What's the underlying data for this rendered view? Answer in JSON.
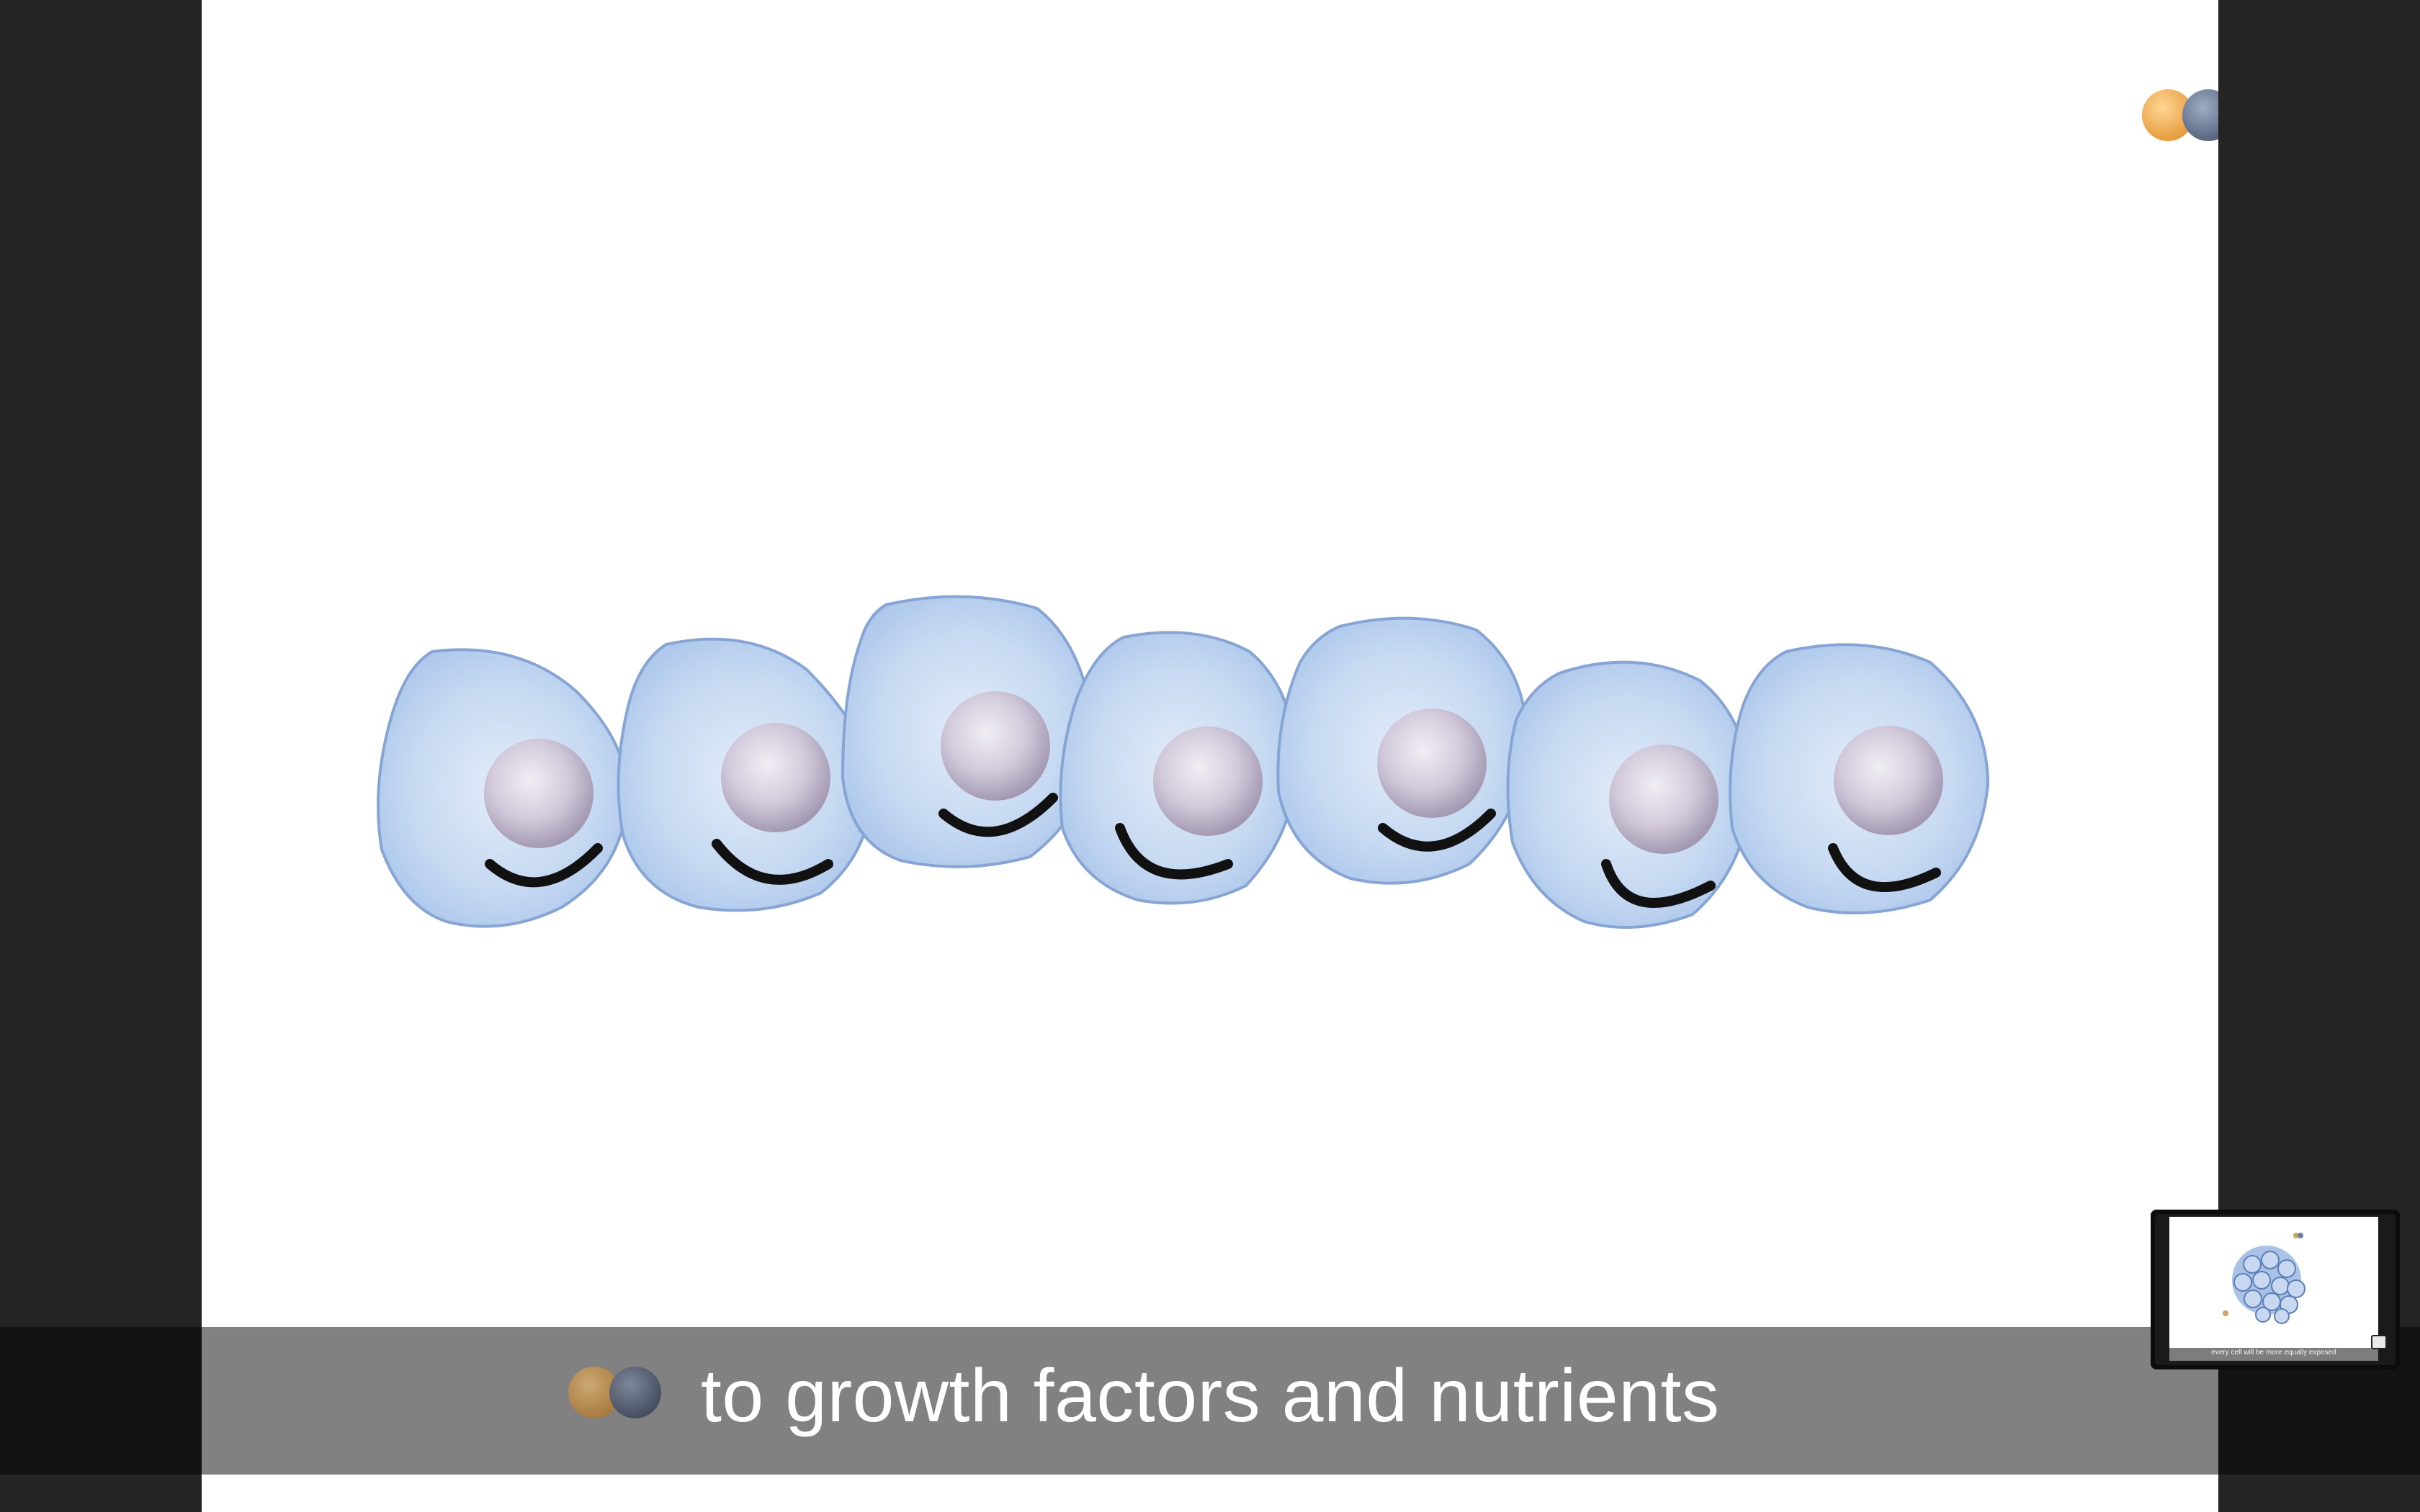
{
  "subtitle": {
    "text": "to growth factors and nutrients"
  },
  "preview": {
    "caption": "every cell will be more equally exposed"
  },
  "colors": {
    "cell_fill": "#bcd3ef",
    "cell_edge": "#7e9dcf",
    "nucleus": "#d4ccdd",
    "smile": "#111111",
    "growth_factor": "#f2b25a",
    "nutrient": "#6f7f9a",
    "subtitle_bar": "#818181"
  },
  "icons": [
    "growth-factor-molecule-icon",
    "cell-icon",
    "nucleus-icon",
    "smile-icon",
    "expand-icon"
  ]
}
